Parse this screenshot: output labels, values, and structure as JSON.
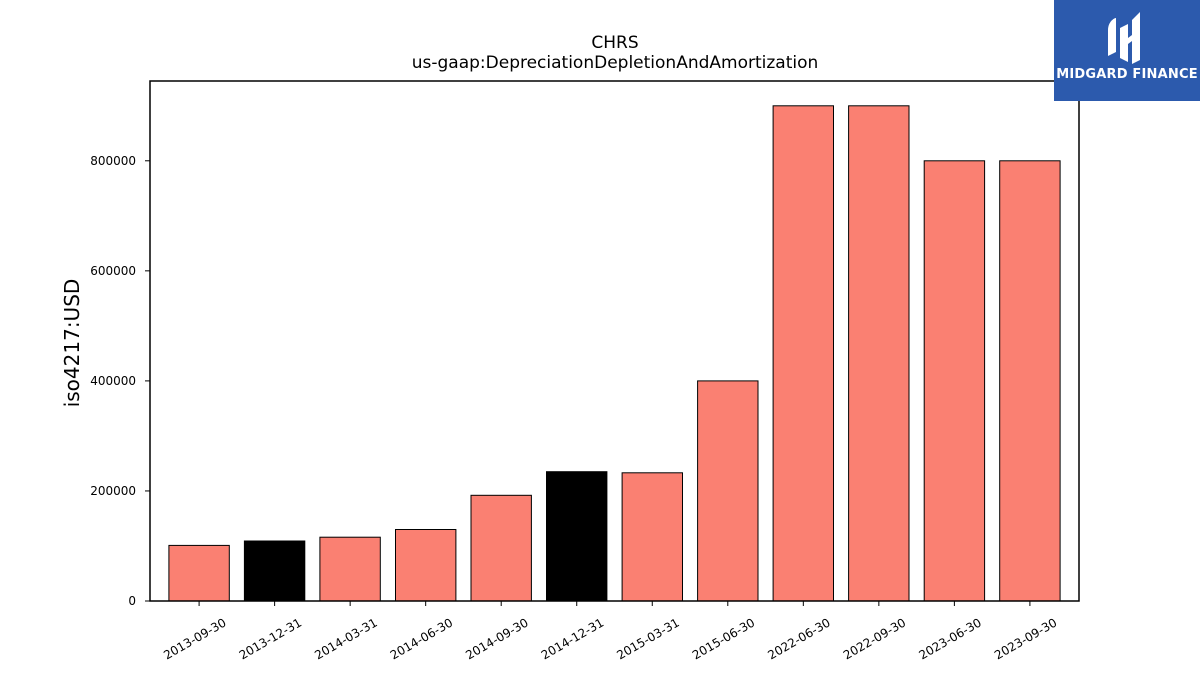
{
  "brand": {
    "name": "MIDGARD FINANCE",
    "icon": "midgard-logo-icon",
    "background": "#2c5aad"
  },
  "chart_data": {
    "type": "bar",
    "title": "CHRS",
    "subtitle": "us-gaap:DepreciationDepletionAndAmortization",
    "xlabel": "",
    "ylabel": "iso4217:USD",
    "categories": [
      "2013-09-30",
      "2013-12-31",
      "2014-03-31",
      "2014-06-30",
      "2014-09-30",
      "2014-12-31",
      "2015-03-31",
      "2015-06-30",
      "2022-06-30",
      "2022-09-30",
      "2023-06-30",
      "2023-09-30"
    ],
    "values": [
      101000,
      109000,
      116000,
      130000,
      192000,
      235000,
      233000,
      400000,
      900000,
      900000,
      800000,
      800000
    ],
    "bar_colors": [
      "#fa8072",
      "#000000",
      "#fa8072",
      "#fa8072",
      "#fa8072",
      "#000000",
      "#fa8072",
      "#fa8072",
      "#fa8072",
      "#fa8072",
      "#fa8072",
      "#fa8072"
    ],
    "yticks": [
      0,
      200000,
      400000,
      600000,
      800000
    ],
    "ylim": [
      0,
      945000
    ],
    "grid": false,
    "legend": "none"
  }
}
